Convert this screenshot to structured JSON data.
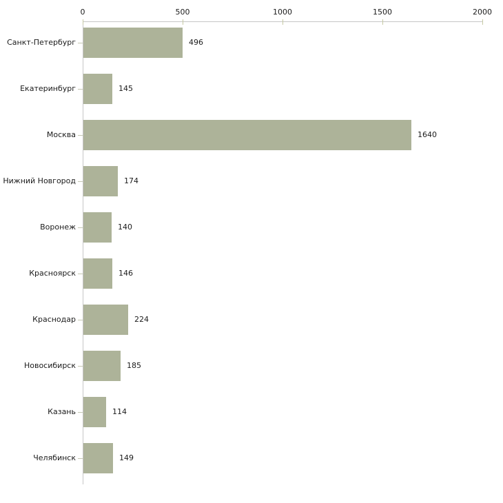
{
  "chart_data": {
    "type": "bar",
    "orientation": "horizontal",
    "title": "",
    "categories": [
      "Санкт-Петербург",
      "Екатеринбург",
      "Москва",
      "Нижний Новгород",
      "Воронеж",
      "Красноярск",
      "Краснодар",
      "Новосибирск",
      "Казань",
      "Челябинск"
    ],
    "values": [
      496,
      145,
      1640,
      174,
      140,
      146,
      224,
      185,
      114,
      149
    ],
    "value_labels": [
      "496",
      "145",
      "1640",
      "174",
      "140",
      "146",
      "224",
      "185",
      "114",
      "149"
    ],
    "x_ticks": [
      0,
      500,
      1000,
      1500,
      2000
    ],
    "x_tick_labels": [
      "0",
      "500",
      "1000",
      "1500",
      "2000"
    ],
    "xlim": [
      0,
      2000
    ],
    "xlabel": "",
    "ylabel": "",
    "axis_position": "top",
    "grid": false,
    "legend": false,
    "colors": {
      "bar": "#adb399",
      "axis_line": "#c6c6c6",
      "x_tick_mark": "#c7caa4",
      "y_tick_mark": "#c5c7b2",
      "text": "#1a1a1a",
      "background": "#ffffff"
    }
  }
}
